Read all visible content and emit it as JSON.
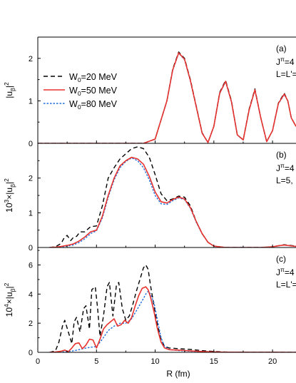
{
  "chart_data": {
    "type": "line",
    "x_axis": {
      "label": "R (fm)",
      "range": [
        0,
        22
      ],
      "ticks": [
        0,
        5,
        10,
        15,
        20
      ],
      "tick_labels": [
        "0",
        "5",
        "10",
        "15",
        "20"
      ]
    },
    "legend": {
      "placement": "top-left of panel (a)",
      "entries": [
        {
          "text": "W0=20 MeV",
          "base": "W",
          "sub": "0",
          "rest": "=20 MeV",
          "color": "#000000",
          "dash": "dash"
        },
        {
          "text": "W0=50 MeV",
          "base": "W",
          "sub": "0",
          "rest": "=50 MeV",
          "color": "#e8322d",
          "dash": "solid"
        },
        {
          "text": "W0=80 MeV",
          "base": "W",
          "sub": "0",
          "rest": "=80 MeV",
          "color": "#1f6fe0",
          "dash": "dot"
        }
      ]
    },
    "panels": [
      {
        "id": "a",
        "label": "(a)",
        "annotation": [
          "Jπ=4",
          "L=L'="
        ],
        "ylabel": "|uβ|²",
        "ylabel_parts": {
          "prefix": "",
          "base": "|u",
          "sub": "β",
          "rest": "|",
          "sup": "2"
        },
        "ylim": [
          0,
          2.5
        ],
        "yticks": [
          0,
          1,
          2
        ],
        "ytick_labels": [
          "0",
          "1",
          "2"
        ],
        "series": [
          {
            "name": "W0=20 MeV",
            "x": [
              0,
              9,
              10,
              11,
              11.5,
              12,
              12.5,
              13,
              14,
              14.5,
              15,
              15.5,
              16,
              16.5,
              17,
              17.5,
              18,
              18.5,
              19,
              19.5,
              20,
              20.5,
              21,
              21.3,
              21.6,
              22
            ],
            "y": [
              0,
              0,
              0.1,
              1.0,
              1.75,
              2.15,
              2.0,
              1.5,
              0.25,
              0.02,
              0.4,
              1.2,
              1.48,
              1.0,
              0.2,
              0.08,
              0.8,
              1.28,
              0.6,
              0.04,
              0.3,
              0.95,
              1.18,
              1.0,
              0.6,
              0.4
            ]
          },
          {
            "name": "W0=50 MeV",
            "x": [
              0,
              9,
              10,
              11,
              11.5,
              12,
              12.5,
              13,
              14,
              14.5,
              15,
              15.5,
              16,
              16.5,
              17,
              17.5,
              18,
              18.5,
              19,
              19.5,
              20,
              20.5,
              21,
              21.3,
              21.6,
              22
            ],
            "y": [
              0,
              0,
              0.1,
              1.0,
              1.73,
              2.13,
              1.98,
              1.48,
              0.24,
              0.02,
              0.4,
              1.18,
              1.46,
              0.98,
              0.2,
              0.08,
              0.78,
              1.26,
              0.6,
              0.04,
              0.3,
              0.94,
              1.16,
              1.0,
              0.6,
              0.4
            ]
          },
          {
            "name": "W0=80 MeV",
            "x": [
              0,
              9,
              10,
              11,
              11.5,
              12,
              12.5,
              13,
              14,
              14.5,
              15,
              15.5,
              16,
              16.5,
              17,
              17.5,
              18,
              18.5,
              19,
              19.5,
              20,
              20.5,
              21,
              21.3,
              21.6,
              22
            ],
            "y": [
              0,
              0,
              0.1,
              1.0,
              1.72,
              2.12,
              1.97,
              1.47,
              0.24,
              0.02,
              0.4,
              1.17,
              1.45,
              0.97,
              0.2,
              0.08,
              0.78,
              1.25,
              0.6,
              0.04,
              0.3,
              0.93,
              1.15,
              1.0,
              0.6,
              0.4
            ]
          }
        ]
      },
      {
        "id": "b",
        "label": "(b)",
        "annotation": [
          "Jπ=4",
          "L=5,"
        ],
        "ylabel": "10³×|uβ|²",
        "ylabel_parts": {
          "prefix": "10",
          "prefix_sup": "3",
          "base": "×|u",
          "sub": "β",
          "rest": "|",
          "sup": "2"
        },
        "ylim": [
          0,
          3.0
        ],
        "yticks": [
          0,
          1,
          2
        ],
        "ytick_labels": [
          "0",
          "1",
          "2"
        ],
        "series": [
          {
            "name": "W0=20 MeV",
            "x": [
              1,
              1.5,
              2,
              2.2,
              2.5,
              2.8,
              3,
              3.3,
              3.6,
              4,
              4.5,
              5,
              5.5,
              6,
              6.5,
              7,
              7.5,
              8,
              8.5,
              9,
              9.5,
              10,
              10.5,
              11,
              11.5,
              12,
              12.5,
              13,
              13.5,
              14,
              14.5,
              15,
              16,
              17,
              18,
              19,
              20,
              20.5,
              21,
              21.5,
              22
            ],
            "y": [
              0,
              0.02,
              0.12,
              0.25,
              0.35,
              0.2,
              0.28,
              0.32,
              0.45,
              0.45,
              0.6,
              0.62,
              1.2,
              2.0,
              2.3,
              2.55,
              2.7,
              2.85,
              2.9,
              2.85,
              2.6,
              2.1,
              1.55,
              1.35,
              1.4,
              1.48,
              1.45,
              1.2,
              0.75,
              0.4,
              0.15,
              0.04,
              0,
              0,
              0,
              0,
              0.02,
              0.05,
              0.08,
              0.06,
              0.04
            ]
          },
          {
            "name": "W0=50 MeV",
            "x": [
              1,
              1.5,
              2,
              2.5,
              3,
              3.5,
              4,
              4.5,
              5,
              5.5,
              6,
              6.5,
              7,
              7.5,
              8,
              8.5,
              9,
              9.5,
              10,
              10.5,
              11,
              11.5,
              12,
              12.5,
              13,
              13.5,
              14,
              14.5,
              15,
              16,
              17,
              18,
              19,
              20,
              20.5,
              21,
              21.5,
              22
            ],
            "y": [
              0,
              0.01,
              0.03,
              0.06,
              0.1,
              0.18,
              0.3,
              0.45,
              0.5,
              0.9,
              1.5,
              2.0,
              2.35,
              2.5,
              2.6,
              2.55,
              2.4,
              2.05,
              1.6,
              1.32,
              1.28,
              1.38,
              1.45,
              1.4,
              1.15,
              0.75,
              0.4,
              0.15,
              0.04,
              0,
              0,
              0,
              0,
              0.02,
              0.05,
              0.07,
              0.05,
              0.03
            ]
          },
          {
            "name": "W0=80 MeV",
            "x": [
              1,
              1.5,
              2,
              2.5,
              3,
              3.5,
              4,
              4.5,
              5,
              5.5,
              6,
              6.5,
              7,
              7.5,
              8,
              8.5,
              9,
              9.5,
              10,
              10.5,
              11,
              11.5,
              12,
              12.5,
              13,
              13.5,
              14,
              14.5,
              15,
              16,
              17,
              18,
              19,
              20,
              20.5,
              21,
              21.5,
              22
            ],
            "y": [
              0,
              0.01,
              0.02,
              0.04,
              0.07,
              0.14,
              0.25,
              0.4,
              0.48,
              0.85,
              1.45,
              1.95,
              2.3,
              2.48,
              2.58,
              2.5,
              2.3,
              1.95,
              1.5,
              1.26,
              1.24,
              1.35,
              1.43,
              1.38,
              1.13,
              0.73,
              0.39,
              0.15,
              0.04,
              0,
              0,
              0,
              0,
              0.02,
              0.05,
              0.07,
              0.05,
              0.03
            ]
          }
        ]
      },
      {
        "id": "c",
        "label": "(c)",
        "annotation": [
          "Jπ=4",
          "L=L'="
        ],
        "ylabel": "10⁴×|uβ|²",
        "ylabel_parts": {
          "prefix": "10",
          "prefix_sup": "4",
          "base": "×|u",
          "sub": "β",
          "rest": "|",
          "sup": "2"
        },
        "ylim": [
          0,
          7.2
        ],
        "yticks": [
          0,
          2,
          4,
          6
        ],
        "ytick_labels": [
          "0",
          "2",
          "4",
          "6"
        ],
        "series": [
          {
            "name": "W0=20 MeV",
            "x": [
              1,
              1.5,
              1.8,
              2.1,
              2.3,
              2.6,
              2.9,
              3.1,
              3.3,
              3.6,
              3.9,
              4.1,
              4.4,
              4.6,
              4.9,
              5.1,
              5.3,
              5.6,
              5.9,
              6.1,
              6.4,
              6.7,
              6.9,
              7.2,
              7.5,
              7.8,
              8.1,
              8.4,
              8.7,
              9.0,
              9.2,
              9.4,
              9.6,
              9.9,
              10.2,
              10.5,
              10.8,
              11.2,
              12,
              13,
              14,
              15,
              16,
              18,
              20,
              22
            ],
            "y": [
              0,
              0.1,
              0.7,
              1.8,
              2.2,
              1.4,
              0.6,
              2.1,
              2.4,
              1.4,
              3.0,
              3.2,
              1.6,
              4.3,
              4.5,
              3.0,
              1.1,
              2.5,
              4.5,
              4.8,
              2.5,
              4.6,
              4.8,
              3.0,
              2.2,
              2.5,
              3.3,
              4.2,
              5.0,
              5.8,
              6.0,
              5.7,
              4.6,
              3.2,
              1.9,
              0.9,
              0.4,
              0.3,
              0.25,
              0.2,
              0.12,
              0.06,
              0.02,
              0.01,
              0.01,
              0
            ]
          },
          {
            "name": "W0=50 MeV",
            "x": [
              1,
              1.5,
              2,
              2.3,
              2.6,
              2.9,
              3.2,
              3.5,
              3.8,
              4.1,
              4.4,
              4.7,
              5.0,
              5.3,
              5.6,
              5.9,
              6.2,
              6.5,
              6.8,
              7.1,
              7.4,
              7.7,
              8.0,
              8.3,
              8.6,
              8.9,
              9.2,
              9.4,
              9.6,
              9.9,
              10.2,
              10.5,
              10.8,
              11.2,
              12,
              13,
              14,
              15,
              16,
              18,
              20,
              22
            ],
            "y": [
              0,
              0.02,
              0.08,
              0.15,
              0.05,
              0.3,
              0.6,
              0.65,
              0.25,
              0.5,
              0.9,
              0.85,
              0.3,
              0.9,
              1.6,
              1.9,
              2.1,
              2.3,
              1.8,
              1.9,
              2.2,
              2.0,
              2.4,
              3.2,
              3.9,
              4.4,
              4.5,
              4.3,
              3.8,
              2.8,
              1.6,
              0.7,
              0.3,
              0.18,
              0.15,
              0.1,
              0.06,
              0.03,
              0.01,
              0.005,
              0.005,
              0
            ]
          },
          {
            "name": "W0=80 MeV",
            "x": [
              1,
              1.5,
              2,
              2.5,
              3,
              3.5,
              4,
              4.5,
              5,
              5.5,
              6,
              6.5,
              7,
              7.5,
              8,
              8.5,
              9,
              9.2,
              9.4,
              9.6,
              9.9,
              10.2,
              10.5,
              10.8,
              11.2,
              12,
              13,
              14,
              15,
              16,
              18,
              20,
              22
            ],
            "y": [
              0,
              0.01,
              0.02,
              0.05,
              0.1,
              0.18,
              0.28,
              0.35,
              0.4,
              0.9,
              1.5,
              1.8,
              2.0,
              2.0,
              2.3,
              3.0,
              3.7,
              4.0,
              4.2,
              4.0,
              3.4,
              2.2,
              1.0,
              0.4,
              0.2,
              0.12,
              0.08,
              0.05,
              0.02,
              0.01,
              0.005,
              0.005,
              0
            ]
          }
        ]
      }
    ]
  }
}
